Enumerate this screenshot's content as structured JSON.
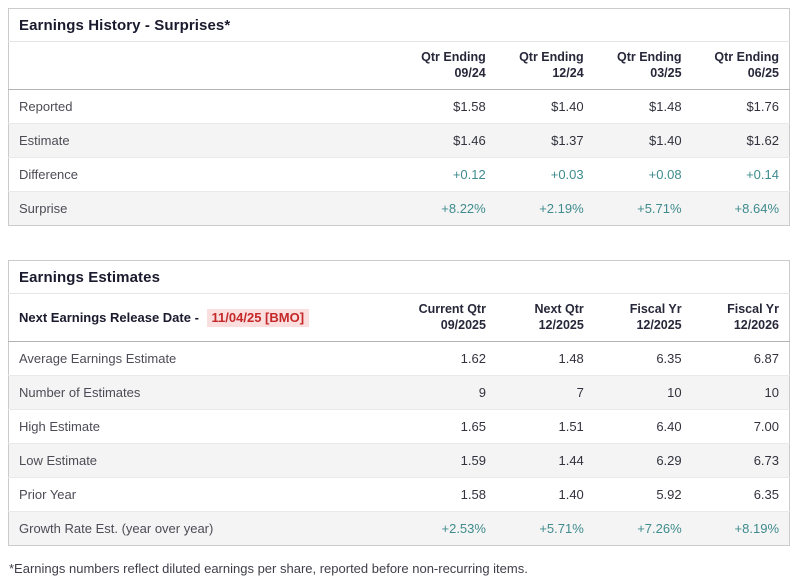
{
  "colors": {
    "positive_teal": "#3f8b8d",
    "release_red": "#c42828",
    "release_red_bg": "#fbdede",
    "alt_row_bg": "#f4f4f4",
    "title_text": "#1a1a2e"
  },
  "history": {
    "title": "Earnings History - Surprises*",
    "columns": [
      {
        "line1": "Qtr Ending",
        "line2": "09/24"
      },
      {
        "line1": "Qtr Ending",
        "line2": "12/24"
      },
      {
        "line1": "Qtr Ending",
        "line2": "03/25"
      },
      {
        "line1": "Qtr Ending",
        "line2": "06/25"
      }
    ],
    "rows": [
      {
        "label": "Reported",
        "values": [
          "$1.58",
          "$1.40",
          "$1.48",
          "$1.76"
        ]
      },
      {
        "label": "Estimate",
        "values": [
          "$1.46",
          "$1.37",
          "$1.40",
          "$1.62"
        ]
      },
      {
        "label": "Difference",
        "values": [
          "+0.12",
          "+0.03",
          "+0.08",
          "+0.14"
        ]
      },
      {
        "label": "Surprise",
        "values": [
          "+8.22%",
          "+2.19%",
          "+5.71%",
          "+8.64%"
        ]
      }
    ]
  },
  "estimates": {
    "title": "Earnings Estimates",
    "release_label": "Next Earnings Release Date -",
    "release_date": "11/04/25 [BMO]",
    "columns": [
      {
        "line1": "Current Qtr",
        "line2": "09/2025"
      },
      {
        "line1": "Next Qtr",
        "line2": "12/2025"
      },
      {
        "line1": "Fiscal Yr",
        "line2": "12/2025"
      },
      {
        "line1": "Fiscal Yr",
        "line2": "12/2026"
      }
    ],
    "rows": [
      {
        "label": "Average Earnings Estimate",
        "values": [
          "1.62",
          "1.48",
          "6.35",
          "6.87"
        ]
      },
      {
        "label": "Number of Estimates",
        "values": [
          "9",
          "7",
          "10",
          "10"
        ]
      },
      {
        "label": "High Estimate",
        "values": [
          "1.65",
          "1.51",
          "6.40",
          "7.00"
        ]
      },
      {
        "label": "Low Estimate",
        "values": [
          "1.59",
          "1.44",
          "6.29",
          "6.73"
        ]
      },
      {
        "label": "Prior Year",
        "values": [
          "1.58",
          "1.40",
          "5.92",
          "6.35"
        ]
      },
      {
        "label": "Growth Rate Est. (year over year)",
        "values": [
          "+2.53%",
          "+5.71%",
          "+7.26%",
          "+8.19%"
        ]
      }
    ]
  },
  "footnote": "*Earnings numbers reflect diluted earnings per share, reported before non-recurring items.",
  "chart_data": [
    {
      "type": "table",
      "title": "Earnings History - Surprises*",
      "columns": [
        "",
        "Qtr Ending 09/24",
        "Qtr Ending 12/24",
        "Qtr Ending 03/25",
        "Qtr Ending 06/25"
      ],
      "rows": [
        [
          "Reported",
          "$1.58",
          "$1.40",
          "$1.48",
          "$1.76"
        ],
        [
          "Estimate",
          "$1.46",
          "$1.37",
          "$1.40",
          "$1.62"
        ],
        [
          "Difference",
          "+0.12",
          "+0.03",
          "+0.08",
          "+0.14"
        ],
        [
          "Surprise",
          "+8.22%",
          "+2.19%",
          "+5.71%",
          "+8.64%"
        ]
      ]
    },
    {
      "type": "table",
      "title": "Earnings Estimates",
      "columns": [
        "Next Earnings Release Date - 11/04/25 [BMO]",
        "Current Qtr 09/2025",
        "Next Qtr 12/2025",
        "Fiscal Yr 12/2025",
        "Fiscal Yr 12/2026"
      ],
      "rows": [
        [
          "Average Earnings Estimate",
          "1.62",
          "1.48",
          "6.35",
          "6.87"
        ],
        [
          "Number of Estimates",
          "9",
          "7",
          "10",
          "10"
        ],
        [
          "High Estimate",
          "1.65",
          "1.51",
          "6.40",
          "7.00"
        ],
        [
          "Low Estimate",
          "1.59",
          "1.44",
          "6.29",
          "6.73"
        ],
        [
          "Prior Year",
          "1.58",
          "1.40",
          "5.92",
          "6.35"
        ],
        [
          "Growth Rate Est. (year over year)",
          "+2.53%",
          "+5.71%",
          "+7.26%",
          "+8.19%"
        ]
      ]
    }
  ]
}
